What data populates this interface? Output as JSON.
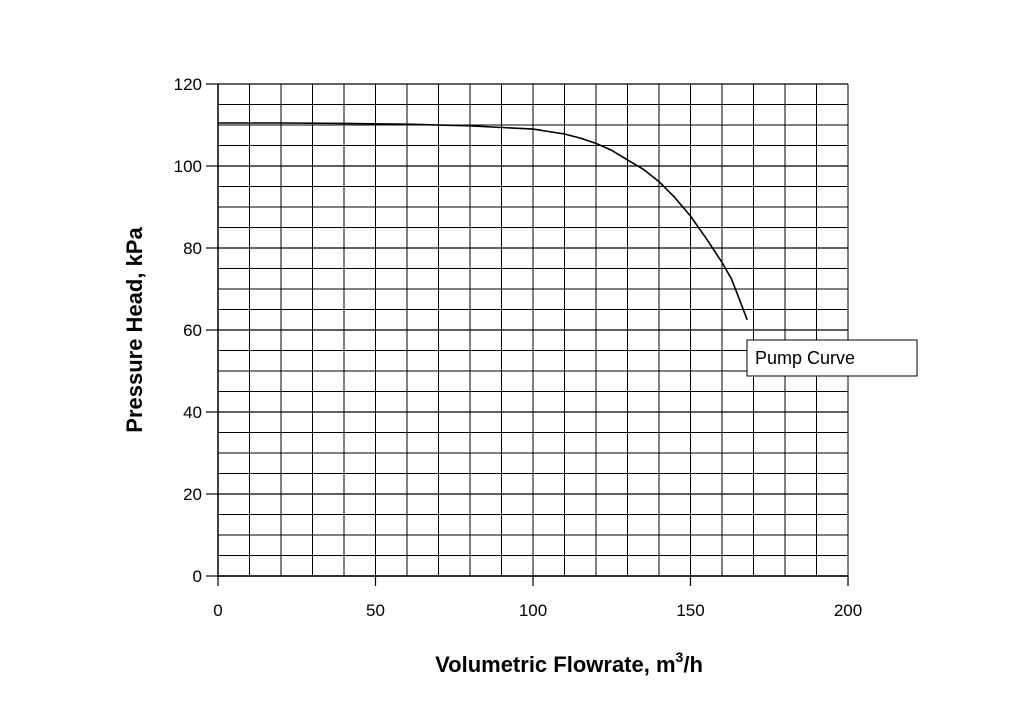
{
  "chart_data": {
    "type": "line",
    "xlabel_main": "Volumetric Flowrate, m",
    "xlabel_sup": "3",
    "xlabel_tail": "/h",
    "ylabel": "Pressure Head, kPa",
    "xlim": [
      0,
      200
    ],
    "ylim": [
      0,
      120
    ],
    "x_ticks": [
      0,
      50,
      100,
      150,
      200
    ],
    "y_ticks": [
      0,
      20,
      40,
      60,
      80,
      100,
      120
    ],
    "x_minor_step": 10,
    "y_minor_step": 5,
    "grid": true,
    "annotation": "Pump Curve",
    "series": [
      {
        "x": [
          0,
          20,
          40,
          60,
          80,
          90,
          100,
          110,
          115,
          120,
          125,
          130,
          135,
          140,
          145,
          150,
          155,
          160,
          163,
          165,
          168
        ],
        "y": [
          110.5,
          110.5,
          110.4,
          110.2,
          109.8,
          109.4,
          109.0,
          107.8,
          106.8,
          105.5,
          103.8,
          101.5,
          99.2,
          96.2,
          92.3,
          87.8,
          82.3,
          76.5,
          72.5,
          68.5,
          62.5
        ]
      }
    ]
  }
}
